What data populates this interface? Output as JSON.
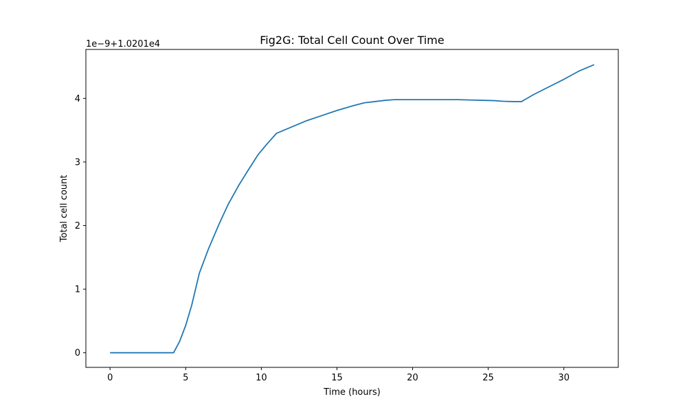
{
  "chart_data": {
    "type": "line",
    "title": "Fig2G: Total Cell Count Over Time",
    "xlabel": "Time (hours)",
    "ylabel": "Total cell count",
    "y_offset_label": "1e−9+1.0201e4",
    "xlim": [
      -1.6,
      33.6
    ],
    "ylim": [
      -0.23,
      4.77
    ],
    "x_ticks": [
      0,
      5,
      10,
      15,
      20,
      25,
      30
    ],
    "x_tick_labels": [
      "0",
      "5",
      "10",
      "15",
      "20",
      "25",
      "30"
    ],
    "y_ticks": [
      0,
      1,
      2,
      3,
      4
    ],
    "y_tick_labels": [
      "0",
      "1",
      "2",
      "3",
      "4"
    ],
    "grid": false,
    "legend": "none",
    "colors": {
      "line": "#1f77b4",
      "axes": "#000000",
      "background": "#ffffff"
    },
    "series": [
      {
        "x": [
          0,
          1,
          2,
          3,
          4,
          4.2,
          4.6,
          5.0,
          5.4,
          5.9,
          6.5,
          7.2,
          7.8,
          8.5,
          9.1,
          9.8,
          10.4,
          11.0,
          12.0,
          13.0,
          14.0,
          15.0,
          16.0,
          16.8,
          17.5,
          18.2,
          18.8,
          19.4,
          20.0,
          20.6,
          21.2,
          21.8,
          22.4,
          23.0,
          23.8,
          24.6,
          25.4,
          26.0,
          26.6,
          27.2,
          28.0,
          29.0,
          30.0,
          31.0,
          31.6,
          32.0
        ],
        "y": [
          0,
          0,
          0,
          0,
          0,
          0,
          0.18,
          0.43,
          0.75,
          1.25,
          1.63,
          2.02,
          2.33,
          2.63,
          2.86,
          3.12,
          3.29,
          3.45,
          3.55,
          3.65,
          3.73,
          3.81,
          3.88,
          3.93,
          3.95,
          3.97,
          3.98,
          3.98,
          3.98,
          3.98,
          3.98,
          3.98,
          3.98,
          3.98,
          3.975,
          3.97,
          3.965,
          3.955,
          3.95,
          3.95,
          4.06,
          4.18,
          4.3,
          4.43,
          4.49,
          4.53
        ]
      }
    ]
  }
}
